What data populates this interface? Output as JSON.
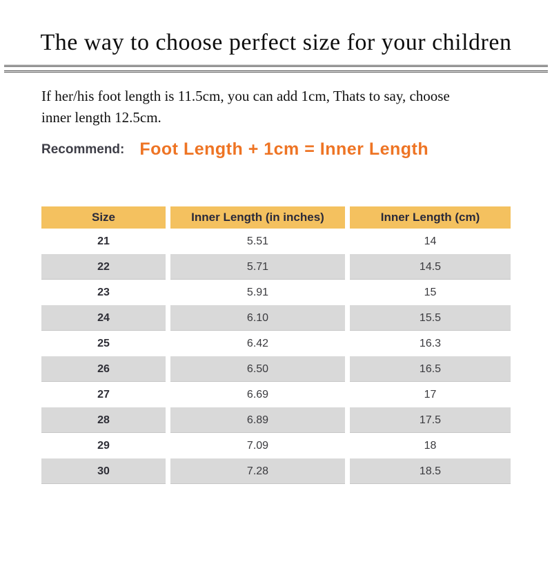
{
  "title": "The way to choose perfect size for your children",
  "intro": {
    "line1": "If her/his foot length is 11.5cm, you can add 1cm, Thats to say, choose",
    "line2": "inner length 12.5cm."
  },
  "recommend": {
    "label": "Recommend:",
    "formula": "Foot Length + 1cm = Inner Length"
  },
  "colors": {
    "header_bg": "#F4C15F",
    "row_alt_bg": "#D9D9D9",
    "accent_orange": "#EE7424",
    "recommend_label_color": "#3E3E47",
    "divider": "#4D4D4D"
  },
  "table": {
    "columns": [
      "Size",
      "Inner Length (in inches)",
      "Inner Length (cm)"
    ],
    "rows": [
      [
        "21",
        "5.51",
        "14"
      ],
      [
        "22",
        "5.71",
        "14.5"
      ],
      [
        "23",
        "5.91",
        "15"
      ],
      [
        "24",
        "6.10",
        "15.5"
      ],
      [
        "25",
        "6.42",
        "16.3"
      ],
      [
        "26",
        "6.50",
        "16.5"
      ],
      [
        "27",
        "6.69",
        "17"
      ],
      [
        "28",
        "6.89",
        "17.5"
      ],
      [
        "29",
        "7.09",
        "18"
      ],
      [
        "30",
        "7.28",
        "18.5"
      ]
    ]
  }
}
